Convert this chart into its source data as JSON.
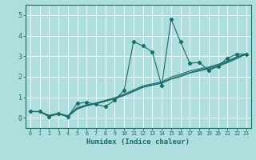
{
  "xlabel": "Humidex (Indice chaleur)",
  "xlim": [
    -0.5,
    23.5
  ],
  "ylim": [
    -0.5,
    5.5
  ],
  "background_color": "#aedede",
  "grid_color": "#c8ecec",
  "line_color": "#1a6b6b",
  "xticks": [
    0,
    1,
    2,
    3,
    4,
    5,
    6,
    7,
    8,
    9,
    10,
    11,
    12,
    13,
    14,
    15,
    16,
    17,
    18,
    19,
    20,
    21,
    22,
    23
  ],
  "yticks": [
    0,
    1,
    2,
    3,
    4,
    5
  ],
  "series_main_x": [
    0,
    1,
    2,
    3,
    4,
    5,
    6,
    7,
    8,
    9,
    10,
    11,
    12,
    13,
    14,
    15,
    16,
    17,
    18,
    19,
    20,
    21,
    22,
    23
  ],
  "series_main_y": [
    0.3,
    0.3,
    0.05,
    0.2,
    0.05,
    0.7,
    0.75,
    0.65,
    0.55,
    0.85,
    1.35,
    3.7,
    3.5,
    3.2,
    1.55,
    4.8,
    3.7,
    2.65,
    2.7,
    2.3,
    2.5,
    2.9,
    3.1,
    3.1
  ],
  "series_line1_x": [
    0,
    1,
    2,
    3,
    4,
    5,
    6,
    7,
    8,
    9,
    10,
    11,
    12,
    13,
    14,
    15,
    16,
    17,
    18,
    19,
    20,
    21,
    22,
    23
  ],
  "series_line1_y": [
    0.3,
    0.3,
    0.1,
    0.2,
    0.1,
    0.45,
    0.6,
    0.7,
    0.82,
    0.95,
    1.1,
    1.3,
    1.5,
    1.6,
    1.7,
    1.9,
    2.05,
    2.2,
    2.32,
    2.42,
    2.55,
    2.72,
    2.92,
    3.1
  ],
  "series_line2_x": [
    0,
    1,
    2,
    3,
    4,
    5,
    6,
    7,
    8,
    9,
    10,
    11,
    12,
    13,
    14,
    15,
    16,
    17,
    18,
    19,
    20,
    21,
    22,
    23
  ],
  "series_line2_y": [
    0.3,
    0.3,
    0.12,
    0.22,
    0.08,
    0.5,
    0.62,
    0.72,
    0.85,
    0.97,
    1.15,
    1.35,
    1.55,
    1.65,
    1.75,
    1.98,
    2.12,
    2.28,
    2.38,
    2.47,
    2.6,
    2.77,
    2.97,
    3.1
  ],
  "series_line3_x": [
    0,
    1,
    2,
    3,
    4,
    5,
    6,
    7,
    8,
    9,
    10,
    11,
    12,
    13,
    14,
    15,
    16,
    17,
    18,
    19,
    20,
    21,
    22,
    23
  ],
  "series_line3_y": [
    0.3,
    0.3,
    0.08,
    0.18,
    0.05,
    0.42,
    0.58,
    0.68,
    0.8,
    0.92,
    1.08,
    1.28,
    1.48,
    1.58,
    1.68,
    1.88,
    2.0,
    2.18,
    2.28,
    2.38,
    2.5,
    2.68,
    2.88,
    3.1
  ]
}
